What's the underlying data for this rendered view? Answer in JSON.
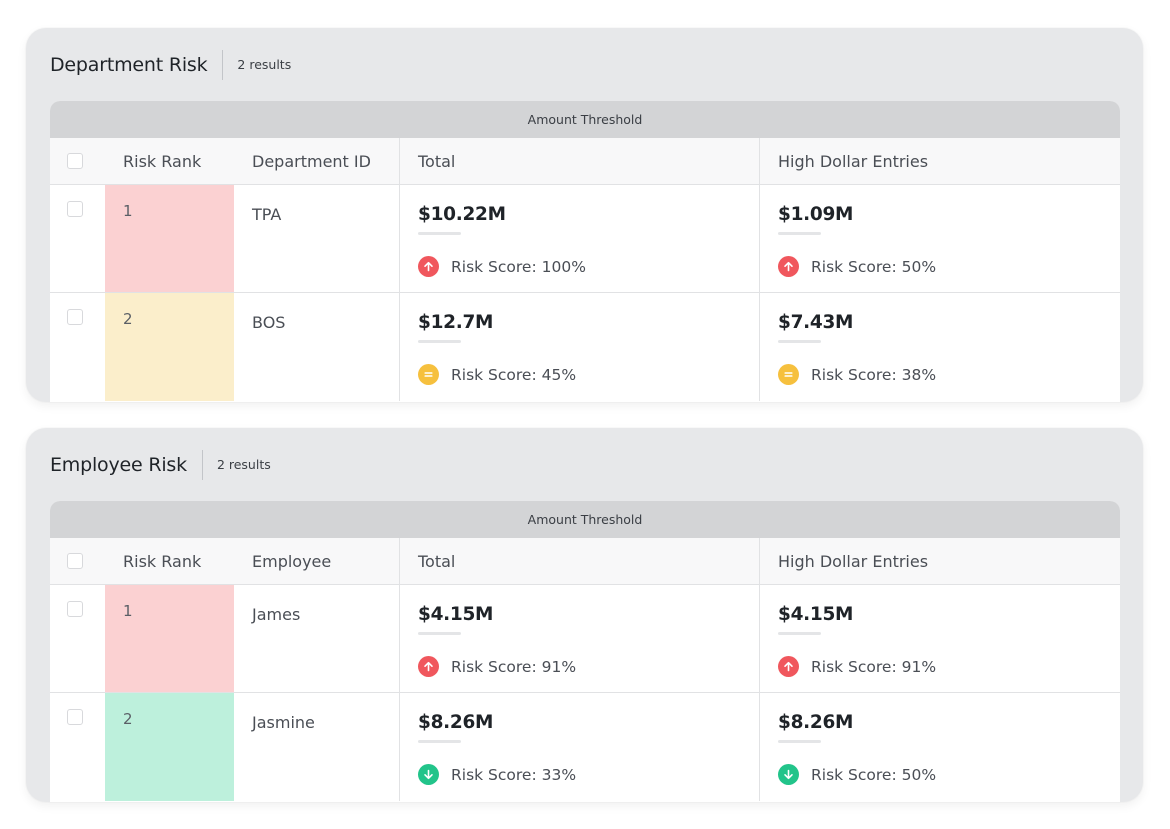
{
  "panels": [
    {
      "title": "Department Risk",
      "count": "2 results",
      "group_header": "Amount Threshold",
      "columns": {
        "rank": "Risk Rank",
        "id": "Department ID",
        "total": "Total",
        "high": "High Dollar Entries"
      },
      "rows": [
        {
          "rank": "1",
          "rank_color": "#fbd1d2",
          "id": "TPA",
          "total": {
            "amount": "$10.22M",
            "score": "Risk Score: 100%",
            "trend": "up",
            "icon_color": "#f0575d"
          },
          "high": {
            "amount": "$1.09M",
            "score": "Risk Score: 50%",
            "trend": "up",
            "icon_color": "#f0575d"
          }
        },
        {
          "rank": "2",
          "rank_color": "#fbeecb",
          "id": "BOS",
          "total": {
            "amount": "$12.7M",
            "score": "Risk Score: 45%",
            "trend": "flat",
            "icon_color": "#f6c03e"
          },
          "high": {
            "amount": "$7.43M",
            "score": "Risk Score: 38%",
            "trend": "flat",
            "icon_color": "#f6c03e"
          }
        }
      ]
    },
    {
      "title": "Employee Risk",
      "count": "2 results",
      "group_header": "Amount Threshold",
      "columns": {
        "rank": "Risk Rank",
        "id": "Employee",
        "total": "Total",
        "high": "High Dollar Entries"
      },
      "rows": [
        {
          "rank": "1",
          "rank_color": "#fbd1d2",
          "id": "James",
          "total": {
            "amount": "$4.15M",
            "score": "Risk Score: 91%",
            "trend": "up",
            "icon_color": "#f0575d"
          },
          "high": {
            "amount": "$4.15M",
            "score": "Risk Score: 91%",
            "trend": "up",
            "icon_color": "#f0575d"
          }
        },
        {
          "rank": "2",
          "rank_color": "#bdf0dc",
          "id": "Jasmine",
          "total": {
            "amount": "$8.26M",
            "score": "Risk Score: 33%",
            "trend": "down",
            "icon_color": "#22c48a"
          },
          "high": {
            "amount": "$8.26M",
            "score": "Risk Score: 50%",
            "trend": "down",
            "icon_color": "#22c48a"
          }
        }
      ]
    }
  ]
}
